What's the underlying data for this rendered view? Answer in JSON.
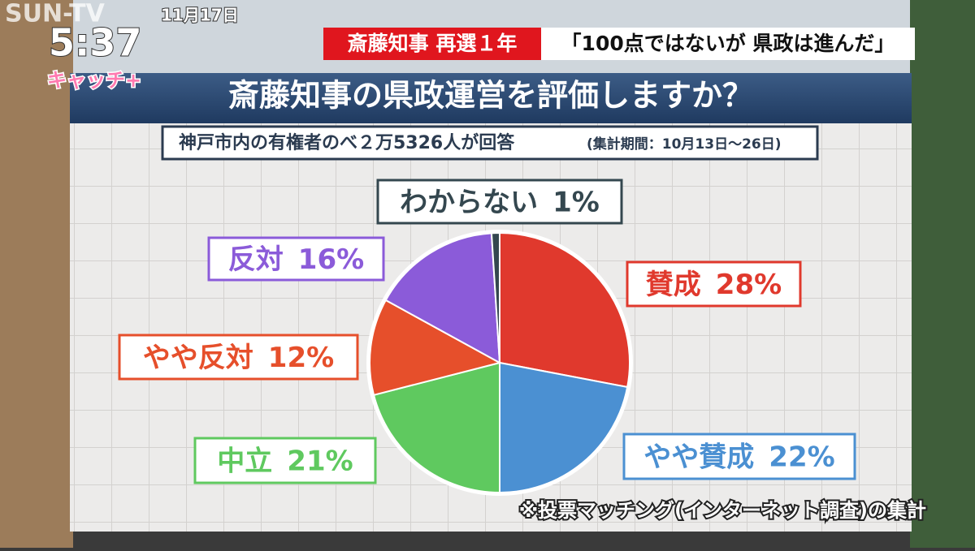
{
  "overlay": {
    "channel": "SUN-TV",
    "time": "5:37",
    "date": "11月17日",
    "program": "キャッチ+",
    "topic": "斎藤知事 再選１年",
    "headline": "「100点ではないが 県政は進んだ」"
  },
  "chart_data": {
    "type": "pie",
    "title": "斎藤知事の県政運営を評価しますか？",
    "subtitle": "神戸市内の有権者のべ２万5326人が回答",
    "period": "(集計期間：10月13日～26日)",
    "note": "※投票マッチング(インターネット調査)の集計",
    "categories": [
      "賛成",
      "やや賛成",
      "中立",
      "やや反対",
      "反対",
      "わからない"
    ],
    "values": [
      28,
      22,
      21,
      12,
      16,
      1
    ],
    "value_labels": [
      "28%",
      "22%",
      "21%",
      "12%",
      "16%",
      "1%"
    ],
    "colors": [
      "#e0392d",
      "#4b90d2",
      "#5fc95f",
      "#e64f2b",
      "#8b5bd9",
      "#34474f"
    ]
  }
}
